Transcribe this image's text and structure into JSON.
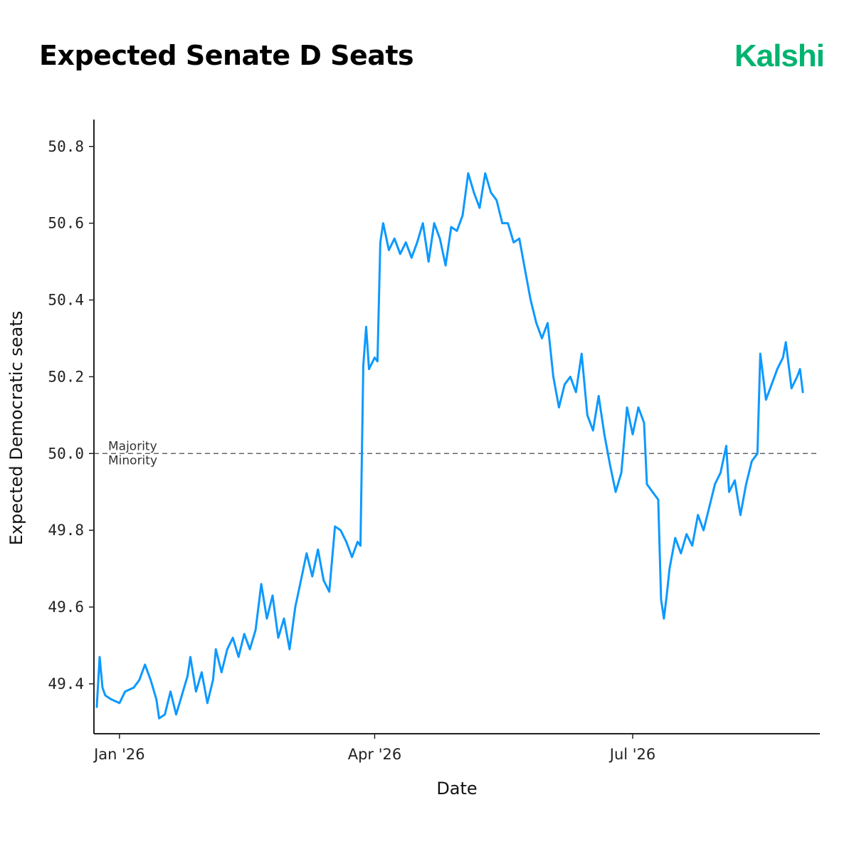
{
  "header": {
    "title": "Expected Senate D Seats",
    "brand": "Kalshi"
  },
  "colors": {
    "brand": "#00b36f",
    "line": "#0c99ff",
    "axis": "#222222",
    "reference": "#666666"
  },
  "chart_data": {
    "type": "line",
    "title": "Expected Senate D Seats",
    "xlabel": "Date",
    "ylabel": "Expected Democratic seats",
    "x_ticks": [
      "Jan '26",
      "Apr '26",
      "Jul '26"
    ],
    "y_ticks": [
      "49.4",
      "49.6",
      "49.8",
      "50.0",
      "50.2",
      "50.4",
      "50.6",
      "50.8"
    ],
    "ylim": [
      49.27,
      50.87
    ],
    "xlim": [
      "2025-12-23",
      "2026-09-05"
    ],
    "grid": false,
    "legend": "none",
    "reference_line": {
      "y": 50.0,
      "style": "dashed",
      "label_above": "Majority",
      "label_below": "Minority"
    },
    "series": [
      {
        "points": [
          [
            "2025-12-24",
            49.34
          ],
          [
            "2025-12-25",
            49.47
          ],
          [
            "2025-12-26",
            49.39
          ],
          [
            "2025-12-27",
            49.37
          ],
          [
            "2025-12-29",
            49.36
          ],
          [
            "2026-01-01",
            49.35
          ],
          [
            "2026-01-03",
            49.38
          ],
          [
            "2026-01-06",
            49.39
          ],
          [
            "2026-01-08",
            49.41
          ],
          [
            "2026-01-10",
            49.45
          ],
          [
            "2026-01-12",
            49.41
          ],
          [
            "2026-01-14",
            49.36
          ],
          [
            "2026-01-15",
            49.31
          ],
          [
            "2026-01-17",
            49.32
          ],
          [
            "2026-01-19",
            49.38
          ],
          [
            "2026-01-21",
            49.32
          ],
          [
            "2026-01-23",
            49.37
          ],
          [
            "2026-01-25",
            49.42
          ],
          [
            "2026-01-26",
            49.47
          ],
          [
            "2026-01-28",
            49.38
          ],
          [
            "2026-01-30",
            49.43
          ],
          [
            "2026-02-01",
            49.35
          ],
          [
            "2026-02-03",
            49.41
          ],
          [
            "2026-02-04",
            49.49
          ],
          [
            "2026-02-06",
            49.43
          ],
          [
            "2026-02-08",
            49.49
          ],
          [
            "2026-02-10",
            49.52
          ],
          [
            "2026-02-12",
            49.47
          ],
          [
            "2026-02-14",
            49.53
          ],
          [
            "2026-02-16",
            49.49
          ],
          [
            "2026-02-18",
            49.54
          ],
          [
            "2026-02-20",
            49.66
          ],
          [
            "2026-02-22",
            49.57
          ],
          [
            "2026-02-24",
            49.63
          ],
          [
            "2026-02-26",
            49.52
          ],
          [
            "2026-02-28",
            49.57
          ],
          [
            "2026-03-02",
            49.49
          ],
          [
            "2026-03-04",
            49.6
          ],
          [
            "2026-03-06",
            49.67
          ],
          [
            "2026-03-08",
            49.74
          ],
          [
            "2026-03-10",
            49.68
          ],
          [
            "2026-03-12",
            49.75
          ],
          [
            "2026-03-14",
            49.67
          ],
          [
            "2026-03-16",
            49.64
          ],
          [
            "2026-03-18",
            49.81
          ],
          [
            "2026-03-20",
            49.8
          ],
          [
            "2026-03-22",
            49.77
          ],
          [
            "2026-03-24",
            49.73
          ],
          [
            "2026-03-26",
            49.77
          ],
          [
            "2026-03-27",
            49.76
          ],
          [
            "2026-03-28",
            50.23
          ],
          [
            "2026-03-29",
            50.33
          ],
          [
            "2026-03-30",
            50.22
          ],
          [
            "2026-04-01",
            50.25
          ],
          [
            "2026-04-02",
            50.24
          ],
          [
            "2026-04-03",
            50.55
          ],
          [
            "2026-04-04",
            50.6
          ],
          [
            "2026-04-06",
            50.53
          ],
          [
            "2026-04-08",
            50.56
          ],
          [
            "2026-04-10",
            50.52
          ],
          [
            "2026-04-12",
            50.55
          ],
          [
            "2026-04-14",
            50.51
          ],
          [
            "2026-04-16",
            50.55
          ],
          [
            "2026-04-18",
            50.6
          ],
          [
            "2026-04-20",
            50.5
          ],
          [
            "2026-04-22",
            50.6
          ],
          [
            "2026-04-24",
            50.56
          ],
          [
            "2026-04-26",
            50.49
          ],
          [
            "2026-04-28",
            50.59
          ],
          [
            "2026-04-30",
            50.58
          ],
          [
            "2026-05-02",
            50.62
          ],
          [
            "2026-05-04",
            50.73
          ],
          [
            "2026-05-06",
            50.68
          ],
          [
            "2026-05-08",
            50.64
          ],
          [
            "2026-05-10",
            50.73
          ],
          [
            "2026-05-12",
            50.68
          ],
          [
            "2026-05-14",
            50.66
          ],
          [
            "2026-05-16",
            50.6
          ],
          [
            "2026-05-18",
            50.6
          ],
          [
            "2026-05-20",
            50.55
          ],
          [
            "2026-05-22",
            50.56
          ],
          [
            "2026-05-24",
            50.48
          ],
          [
            "2026-05-26",
            50.4
          ],
          [
            "2026-05-28",
            50.34
          ],
          [
            "2026-05-30",
            50.3
          ],
          [
            "2026-06-01",
            50.34
          ],
          [
            "2026-06-03",
            50.2
          ],
          [
            "2026-06-05",
            50.12
          ],
          [
            "2026-06-07",
            50.18
          ],
          [
            "2026-06-09",
            50.2
          ],
          [
            "2026-06-11",
            50.16
          ],
          [
            "2026-06-13",
            50.26
          ],
          [
            "2026-06-15",
            50.1
          ],
          [
            "2026-06-17",
            50.06
          ],
          [
            "2026-06-19",
            50.15
          ],
          [
            "2026-06-21",
            50.05
          ],
          [
            "2026-06-23",
            49.97
          ],
          [
            "2026-06-25",
            49.9
          ],
          [
            "2026-06-27",
            49.95
          ],
          [
            "2026-06-29",
            50.12
          ],
          [
            "2026-07-01",
            50.05
          ],
          [
            "2026-07-03",
            50.12
          ],
          [
            "2026-07-05",
            50.08
          ],
          [
            "2026-07-06",
            49.92
          ],
          [
            "2026-07-08",
            49.9
          ],
          [
            "2026-07-10",
            49.88
          ],
          [
            "2026-07-11",
            49.62
          ],
          [
            "2026-07-12",
            49.57
          ],
          [
            "2026-07-13",
            49.63
          ],
          [
            "2026-07-14",
            49.7
          ],
          [
            "2026-07-16",
            49.78
          ],
          [
            "2026-07-18",
            49.74
          ],
          [
            "2026-07-20",
            49.79
          ],
          [
            "2026-07-22",
            49.76
          ],
          [
            "2026-07-24",
            49.84
          ],
          [
            "2026-07-26",
            49.8
          ],
          [
            "2026-07-28",
            49.86
          ],
          [
            "2026-07-30",
            49.92
          ],
          [
            "2026-08-01",
            49.95
          ],
          [
            "2026-08-03",
            50.02
          ],
          [
            "2026-08-04",
            49.9
          ],
          [
            "2026-08-06",
            49.93
          ],
          [
            "2026-08-08",
            49.84
          ],
          [
            "2026-08-10",
            49.92
          ],
          [
            "2026-08-12",
            49.98
          ],
          [
            "2026-08-14",
            50.0
          ],
          [
            "2026-08-15",
            50.26
          ],
          [
            "2026-08-17",
            50.14
          ],
          [
            "2026-08-19",
            50.18
          ],
          [
            "2026-08-21",
            50.22
          ],
          [
            "2026-08-23",
            50.25
          ],
          [
            "2026-08-24",
            50.29
          ],
          [
            "2026-08-26",
            50.17
          ],
          [
            "2026-08-28",
            50.2
          ],
          [
            "2026-08-29",
            50.22
          ],
          [
            "2026-08-30",
            50.16
          ]
        ]
      }
    ]
  }
}
